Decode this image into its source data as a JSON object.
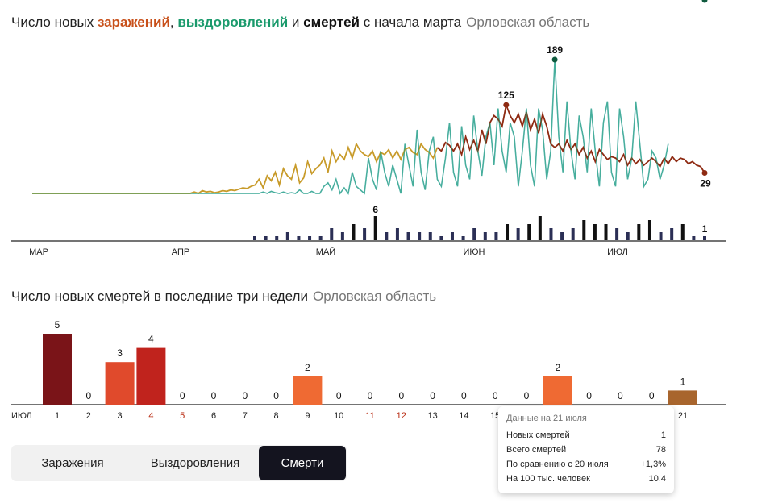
{
  "chart1": {
    "title_prefix": "Число новых ",
    "title_inf": "заражений",
    "title_comma": ", ",
    "title_rec": "выздоровлений",
    "title_and": " и ",
    "title_dth": "смертей",
    "title_suffix": " с начала марта",
    "region": "Орловская область"
  },
  "chart2": {
    "title": "Число новых смертей в последние три недели",
    "region": "Орловская область"
  },
  "colors": {
    "infections": "#8e2a12",
    "infections_early": "#c89b2a",
    "recoveries": "#1a9a6c",
    "recoveries_light": "#7fc6d4",
    "deaths": "#2b2f55",
    "deaths_dark": "#111111"
  },
  "chart_data": [
    {
      "type": "line",
      "x_labels": [
        "МАР",
        "АПР",
        "МАЙ",
        "ИЮН",
        "ИЮЛ"
      ],
      "series": [
        {
          "key": "infections",
          "values": [
            0,
            0,
            0,
            0,
            0,
            0,
            0,
            0,
            0,
            0,
            0,
            0,
            0,
            0,
            0,
            0,
            0,
            0,
            0,
            0,
            0,
            0,
            0,
            0,
            0,
            0,
            0,
            0,
            0,
            0,
            0,
            0,
            0,
            0,
            0,
            0,
            0,
            0,
            0,
            0,
            2,
            0,
            4,
            2,
            3,
            1,
            2,
            4,
            3,
            5,
            4,
            6,
            8,
            7,
            10,
            12,
            20,
            8,
            25,
            18,
            30,
            12,
            35,
            25,
            20,
            40,
            15,
            22,
            45,
            28,
            35,
            40,
            50,
            30,
            60,
            45,
            55,
            48,
            65,
            50,
            70,
            60,
            55,
            52,
            60,
            45,
            58,
            55,
            62,
            50,
            60,
            48,
            62,
            65,
            58,
            55,
            70,
            62,
            58,
            50,
            65,
            60,
            72,
            68,
            60,
            70,
            55,
            80,
            62,
            75,
            60,
            90,
            70,
            100,
            110,
            105,
            95,
            125,
            110,
            100,
            112,
            95,
            115,
            90,
            105,
            85,
            112,
            95,
            70,
            65,
            70,
            60,
            75,
            62,
            70,
            55,
            65,
            50,
            60,
            45,
            62,
            55,
            48,
            52,
            50,
            45,
            55,
            40,
            50,
            42,
            48,
            40,
            45,
            50,
            45,
            38,
            50,
            42,
            52,
            45,
            50,
            48,
            42,
            45,
            40,
            38,
            29
          ]
        },
        {
          "key": "recoveries",
          "values": [
            0,
            0,
            0,
            0,
            0,
            0,
            0,
            0,
            0,
            0,
            0,
            0,
            0,
            0,
            0,
            0,
            0,
            0,
            0,
            0,
            0,
            0,
            0,
            0,
            0,
            0,
            0,
            0,
            0,
            0,
            0,
            0,
            0,
            0,
            0,
            0,
            0,
            0,
            0,
            0,
            0,
            0,
            0,
            0,
            0,
            0,
            0,
            0,
            0,
            0,
            0,
            0,
            0,
            0,
            0,
            0,
            0,
            2,
            0,
            3,
            1,
            0,
            2,
            0,
            1,
            0,
            5,
            0,
            0,
            3,
            0,
            0,
            10,
            15,
            5,
            20,
            0,
            8,
            0,
            30,
            10,
            5,
            0,
            50,
            20,
            5,
            60,
            30,
            10,
            40,
            20,
            0,
            70,
            40,
            10,
            90,
            30,
            5,
            60,
            80,
            20,
            10,
            50,
            100,
            30,
            10,
            95,
            40,
            20,
            110,
            60,
            25,
            80,
            100,
            40,
            120,
            60,
            30,
            100,
            80,
            10,
            60,
            120,
            40,
            10,
            120,
            90,
            20,
            60,
            189,
            80,
            30,
            130,
            60,
            20,
            110,
            80,
            30,
            120,
            60,
            10,
            100,
            130,
            30,
            10,
            120,
            80,
            20,
            50,
            130,
            70,
            10,
            20,
            60,
            50,
            20,
            40,
            70
          ]
        },
        {
          "key": "deaths",
          "values": [
            0,
            0,
            0,
            0,
            0,
            0,
            0,
            0,
            0,
            0,
            0,
            0,
            0,
            0,
            0,
            0,
            0,
            0,
            0,
            0,
            0,
            0,
            0,
            0,
            0,
            0,
            0,
            0,
            0,
            0,
            0,
            0,
            0,
            0,
            0,
            0,
            0,
            0,
            0,
            0,
            0,
            0,
            0,
            0,
            0,
            0,
            0,
            0,
            0,
            0,
            0,
            0,
            0,
            0,
            0,
            0,
            0,
            0,
            0,
            0,
            0,
            0,
            0,
            0,
            0,
            0,
            1,
            0,
            0,
            0,
            0,
            1,
            0,
            0,
            0,
            0,
            0,
            0,
            0,
            0,
            0,
            0,
            0,
            0,
            0,
            0,
            0,
            0,
            1,
            0,
            2,
            1,
            1,
            0,
            0,
            0,
            1,
            0,
            0,
            0,
            0,
            0,
            0,
            0,
            0,
            0,
            2,
            0,
            1,
            0,
            0,
            0,
            0,
            0,
            0,
            0,
            0,
            0,
            0,
            0,
            0,
            0,
            0,
            0,
            0,
            0,
            0,
            0,
            0,
            0,
            0,
            0,
            0,
            0,
            0,
            0,
            0,
            0,
            0,
            0,
            0,
            0,
            0,
            0,
            0,
            0,
            0,
            0,
            0,
            0,
            0,
            0,
            0,
            0,
            0,
            0,
            0,
            0,
            0,
            0,
            1
          ]
        },
        {
          "key": "deaths_bars",
          "note": "values"
        }
      ],
      "death_bars": [
        1,
        1,
        1,
        2,
        1,
        1,
        1,
        3,
        2,
        4,
        3,
        6,
        2,
        3,
        2,
        2,
        2,
        1,
        2,
        1,
        3,
        2,
        2,
        4,
        3,
        4,
        6,
        3,
        2,
        3,
        5,
        4,
        4,
        3,
        2,
        4,
        5,
        2,
        3,
        4,
        1,
        1
      ],
      "labels": {
        "inf_peak": "125",
        "rec_peak": "189",
        "death_peak": "6",
        "rec_last": "70",
        "inf_last": "29",
        "death_last": "1"
      }
    },
    {
      "type": "bar",
      "x_label": "ИЮЛ",
      "categories": [
        "1",
        "2",
        "3",
        "4",
        "5",
        "6",
        "7",
        "8",
        "9",
        "10",
        "11",
        "12",
        "13",
        "14",
        "15",
        "16",
        "17",
        "18",
        "19",
        "20",
        "21"
      ],
      "values": [
        5,
        0,
        3,
        4,
        0,
        0,
        0,
        0,
        2,
        0,
        0,
        0,
        0,
        0,
        0,
        0,
        2,
        0,
        0,
        0,
        1
      ],
      "category_colors": [
        "#222",
        "#222",
        "#222",
        "#b8290f",
        "#b8290f",
        "#222",
        "#222",
        "#222",
        "#222",
        "#222",
        "#b8290f",
        "#b8290f",
        "#222",
        "#222",
        "#222",
        "#222",
        "#222",
        "#222",
        "#222",
        "#222",
        "#222"
      ],
      "bar_colors": [
        "#7a1418",
        "#000",
        "#e04a2c",
        "#c0231d",
        "#000",
        "#000",
        "#000",
        "#000",
        "#ef6a33",
        "#000",
        "#000",
        "#000",
        "#000",
        "#000",
        "#000",
        "#000",
        "#ef6a33",
        "#000",
        "#000",
        "#000",
        "#a8652d"
      ]
    }
  ],
  "tabs": [
    {
      "label": "Заражения"
    },
    {
      "label": "Выздоровления"
    },
    {
      "label": "Смерти"
    }
  ],
  "tooltip": {
    "header": "Данные на 21 июля",
    "rows": [
      {
        "key": "Новых смертей",
        "value": "1"
      },
      {
        "key": "Всего смертей",
        "value": "78"
      },
      {
        "key": "По сравнению с 20 июля",
        "value": "+1,3%"
      },
      {
        "key": "На 100 тыс. человек",
        "value": "10,4"
      }
    ]
  }
}
